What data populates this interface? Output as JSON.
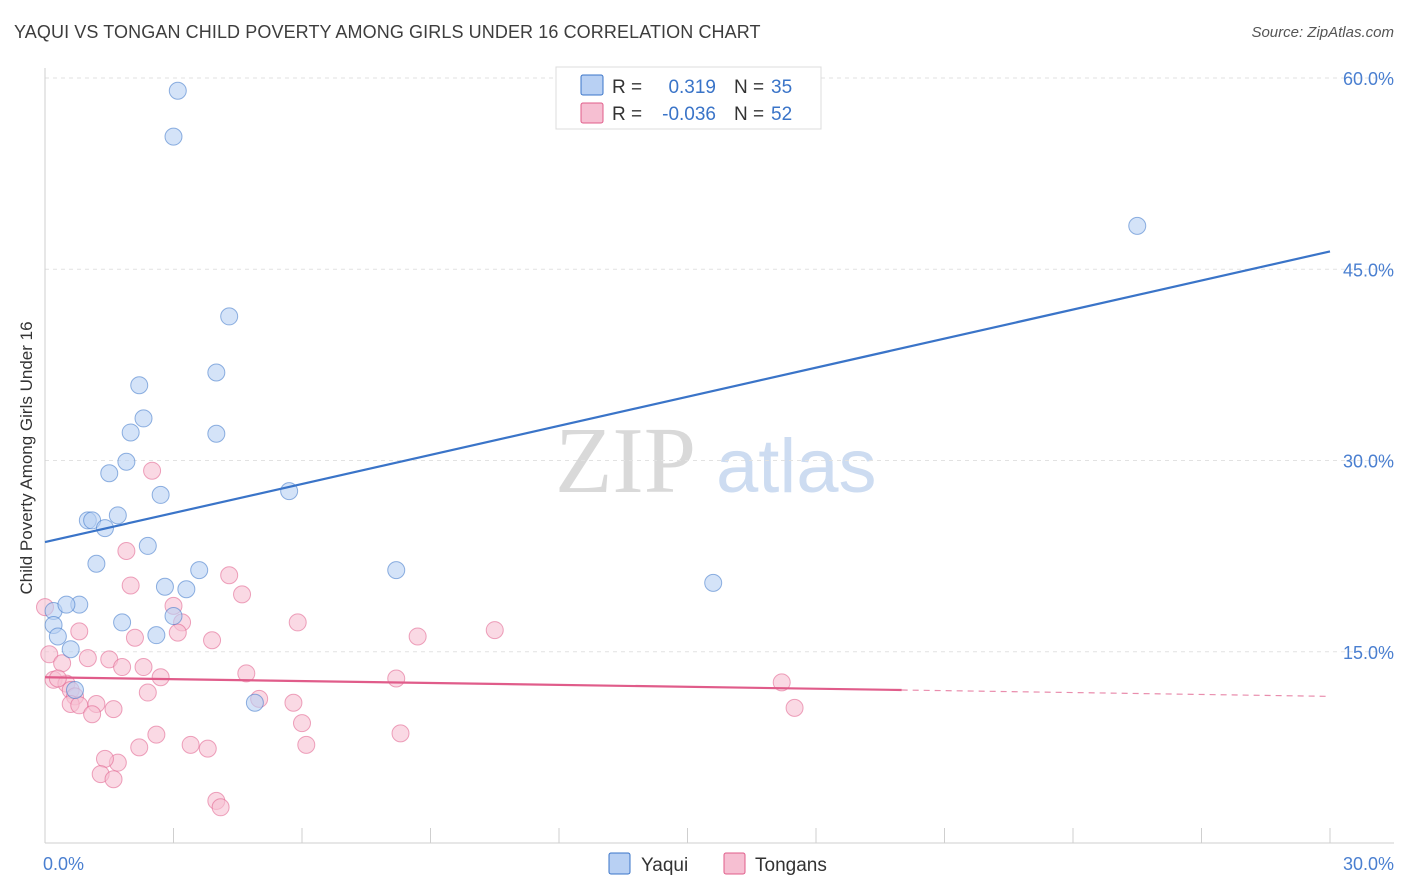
{
  "title": "YAQUI VS TONGAN CHILD POVERTY AMONG GIRLS UNDER 16 CORRELATION CHART",
  "source": "Source: ZipAtlas.com",
  "watermark": {
    "zip": "ZIP",
    "atlas": "atlas"
  },
  "colors": {
    "yaqui": "#3a74c8",
    "yaqui_fill": "#b8d0f3",
    "tongans": "#e05c8a",
    "tongans_fill": "#f6bfd2",
    "tick": "#4a7fd0"
  },
  "legend": {
    "r_label": "R =",
    "n_label": "N =",
    "rows": [
      {
        "r": "0.319",
        "n": "35"
      },
      {
        "r": "-0.036",
        "n": "52"
      }
    ]
  },
  "chart_data": {
    "type": "scatter",
    "title": "YAQUI VS TONGAN CHILD POVERTY AMONG GIRLS UNDER 16 CORRELATION CHART",
    "xlabel": "",
    "ylabel": "Child Poverty Among Girls Under 16",
    "xlim": [
      0,
      30
    ],
    "ylim": [
      0,
      60
    ],
    "x_ticks": [
      0,
      3,
      6,
      9,
      12,
      15,
      18,
      21,
      24,
      27,
      30
    ],
    "x_tick_labels": [
      {
        "value": 0,
        "label": "0.0%"
      },
      {
        "value": 30,
        "label": "30.0%"
      }
    ],
    "y_ticks": [
      15,
      30,
      45,
      60
    ],
    "y_tick_labels": [
      "15.0%",
      "30.0%",
      "45.0%",
      "60.0%"
    ],
    "legend_labels": [
      "Yaqui",
      "Tongans"
    ],
    "series": [
      {
        "name": "Yaqui",
        "r": 0.319,
        "n": 35,
        "trend": {
          "x": [
            0,
            30
          ],
          "y": [
            23.6,
            46.4
          ],
          "dashed_from": null
        },
        "points": [
          [
            3.1,
            59.0
          ],
          [
            3.0,
            55.4
          ],
          [
            25.5,
            48.4
          ],
          [
            4.3,
            41.3
          ],
          [
            4.0,
            36.9
          ],
          [
            2.2,
            35.9
          ],
          [
            2.3,
            33.3
          ],
          [
            2.0,
            32.2
          ],
          [
            4.0,
            32.1
          ],
          [
            1.9,
            29.9
          ],
          [
            1.5,
            29.0
          ],
          [
            2.7,
            27.3
          ],
          [
            5.7,
            27.6
          ],
          [
            1.0,
            25.3
          ],
          [
            1.1,
            25.3
          ],
          [
            1.7,
            25.7
          ],
          [
            1.4,
            24.7
          ],
          [
            2.4,
            23.3
          ],
          [
            1.2,
            21.9
          ],
          [
            3.6,
            21.4
          ],
          [
            8.2,
            21.4
          ],
          [
            15.6,
            20.4
          ],
          [
            2.8,
            20.1
          ],
          [
            3.3,
            19.9
          ],
          [
            0.2,
            18.2
          ],
          [
            0.8,
            18.7
          ],
          [
            0.5,
            18.7
          ],
          [
            3.0,
            17.8
          ],
          [
            1.8,
            17.3
          ],
          [
            0.2,
            17.1
          ],
          [
            0.3,
            16.2
          ],
          [
            2.6,
            16.3
          ],
          [
            0.6,
            15.2
          ],
          [
            0.7,
            12.0
          ],
          [
            4.9,
            11.0
          ]
        ]
      },
      {
        "name": "Tongans",
        "r": -0.036,
        "n": 52,
        "trend": {
          "x": [
            0,
            30
          ],
          "y": [
            13.0,
            11.5
          ],
          "dashed_from": 20
        },
        "points": [
          [
            2.5,
            29.2
          ],
          [
            1.9,
            22.9
          ],
          [
            4.3,
            21.0
          ],
          [
            2.0,
            20.2
          ],
          [
            4.6,
            19.5
          ],
          [
            3.0,
            18.6
          ],
          [
            0.0,
            18.5
          ],
          [
            3.2,
            17.3
          ],
          [
            5.9,
            17.3
          ],
          [
            0.8,
            16.6
          ],
          [
            3.1,
            16.5
          ],
          [
            2.1,
            16.1
          ],
          [
            3.9,
            15.9
          ],
          [
            8.7,
            16.2
          ],
          [
            10.5,
            16.7
          ],
          [
            0.1,
            14.8
          ],
          [
            1.0,
            14.5
          ],
          [
            1.5,
            14.4
          ],
          [
            0.4,
            14.1
          ],
          [
            1.8,
            13.8
          ],
          [
            2.3,
            13.8
          ],
          [
            4.7,
            13.3
          ],
          [
            2.7,
            13.0
          ],
          [
            8.2,
            12.9
          ],
          [
            17.2,
            12.6
          ],
          [
            0.2,
            12.8
          ],
          [
            0.5,
            12.5
          ],
          [
            0.6,
            12.0
          ],
          [
            0.7,
            11.5
          ],
          [
            2.4,
            11.8
          ],
          [
            5.0,
            11.3
          ],
          [
            5.8,
            11.0
          ],
          [
            0.6,
            10.9
          ],
          [
            1.2,
            10.9
          ],
          [
            0.8,
            10.8
          ],
          [
            1.6,
            10.5
          ],
          [
            17.5,
            10.6
          ],
          [
            1.1,
            10.1
          ],
          [
            6.0,
            9.4
          ],
          [
            2.6,
            8.5
          ],
          [
            8.3,
            8.6
          ],
          [
            3.4,
            7.7
          ],
          [
            6.1,
            7.7
          ],
          [
            2.2,
            7.5
          ],
          [
            3.8,
            7.4
          ],
          [
            1.7,
            6.3
          ],
          [
            1.4,
            6.6
          ],
          [
            1.3,
            5.4
          ],
          [
            1.6,
            5.0
          ],
          [
            4.0,
            3.3
          ],
          [
            4.1,
            2.8
          ],
          [
            0.3,
            12.9
          ]
        ]
      }
    ]
  }
}
